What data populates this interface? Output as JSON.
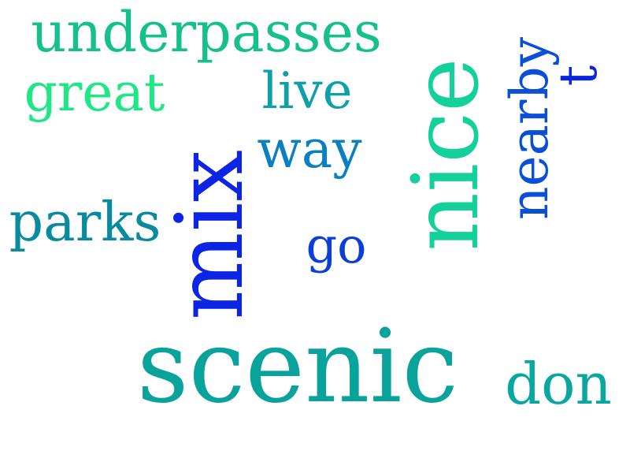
{
  "words": {
    "underpasses": {
      "text": "underpasses",
      "color": "#16c08c"
    },
    "great": {
      "text": "great",
      "color": "#1ee886"
    },
    "live": {
      "text": "live",
      "color": "#0f9fa8"
    },
    "way": {
      "text": "way",
      "color": "#0b80c0"
    },
    "parks": {
      "text": "parks",
      "color": "#0a8a9f"
    },
    "go": {
      "text": "go",
      "color": "#0c3fd8"
    },
    "scenic": {
      "text": "scenic",
      "color": "#0aa39c"
    },
    "don": {
      "text": "don",
      "color": "#0aa6a0"
    },
    "mix": {
      "text": "mix",
      "color": "#0b24e6"
    },
    "nice": {
      "text": "nice",
      "color": "#14d09a"
    },
    "nearby": {
      "text": "nearby",
      "color": "#0b4fd6"
    },
    "t": {
      "text": "t",
      "color": "#0b26d9"
    }
  }
}
